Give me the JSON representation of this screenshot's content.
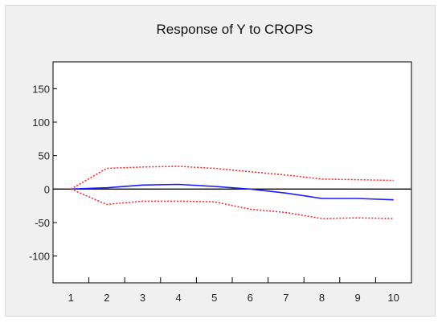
{
  "chart_data": {
    "type": "line",
    "title": "Response of Y to CROPS",
    "xlabel": "",
    "ylabel": "",
    "x": [
      1,
      2,
      3,
      4,
      5,
      6,
      7,
      8,
      9,
      10
    ],
    "xlim": [
      0.5,
      10.5
    ],
    "ylim": [
      -140,
      190
    ],
    "yticks": [
      150,
      100,
      50,
      0,
      -50,
      -100
    ],
    "ytick_labels": [
      "150",
      "100",
      "50",
      "0",
      "-50",
      "-100"
    ],
    "xtick_labels": [
      "1",
      "2",
      "3",
      "4",
      "5",
      "6",
      "7",
      "8",
      "9",
      "10"
    ],
    "zero_line": true,
    "grid": false,
    "legend": "none",
    "series": [
      {
        "role": "response",
        "style": "solid",
        "color": "#1a1aff",
        "values": [
          0,
          2,
          6,
          7,
          4,
          0,
          -6,
          -14,
          -14,
          -16
        ]
      },
      {
        "role": "upper",
        "style": "dotted",
        "color": "#ff2020",
        "values": [
          0,
          31,
          33,
          34,
          31,
          26,
          21,
          15,
          14,
          13
        ]
      },
      {
        "role": "lower",
        "style": "dotted",
        "color": "#ff2020",
        "values": [
          0,
          -23,
          -18,
          -18,
          -19,
          -30,
          -35,
          -44,
          -43,
          -44
        ]
      }
    ]
  }
}
